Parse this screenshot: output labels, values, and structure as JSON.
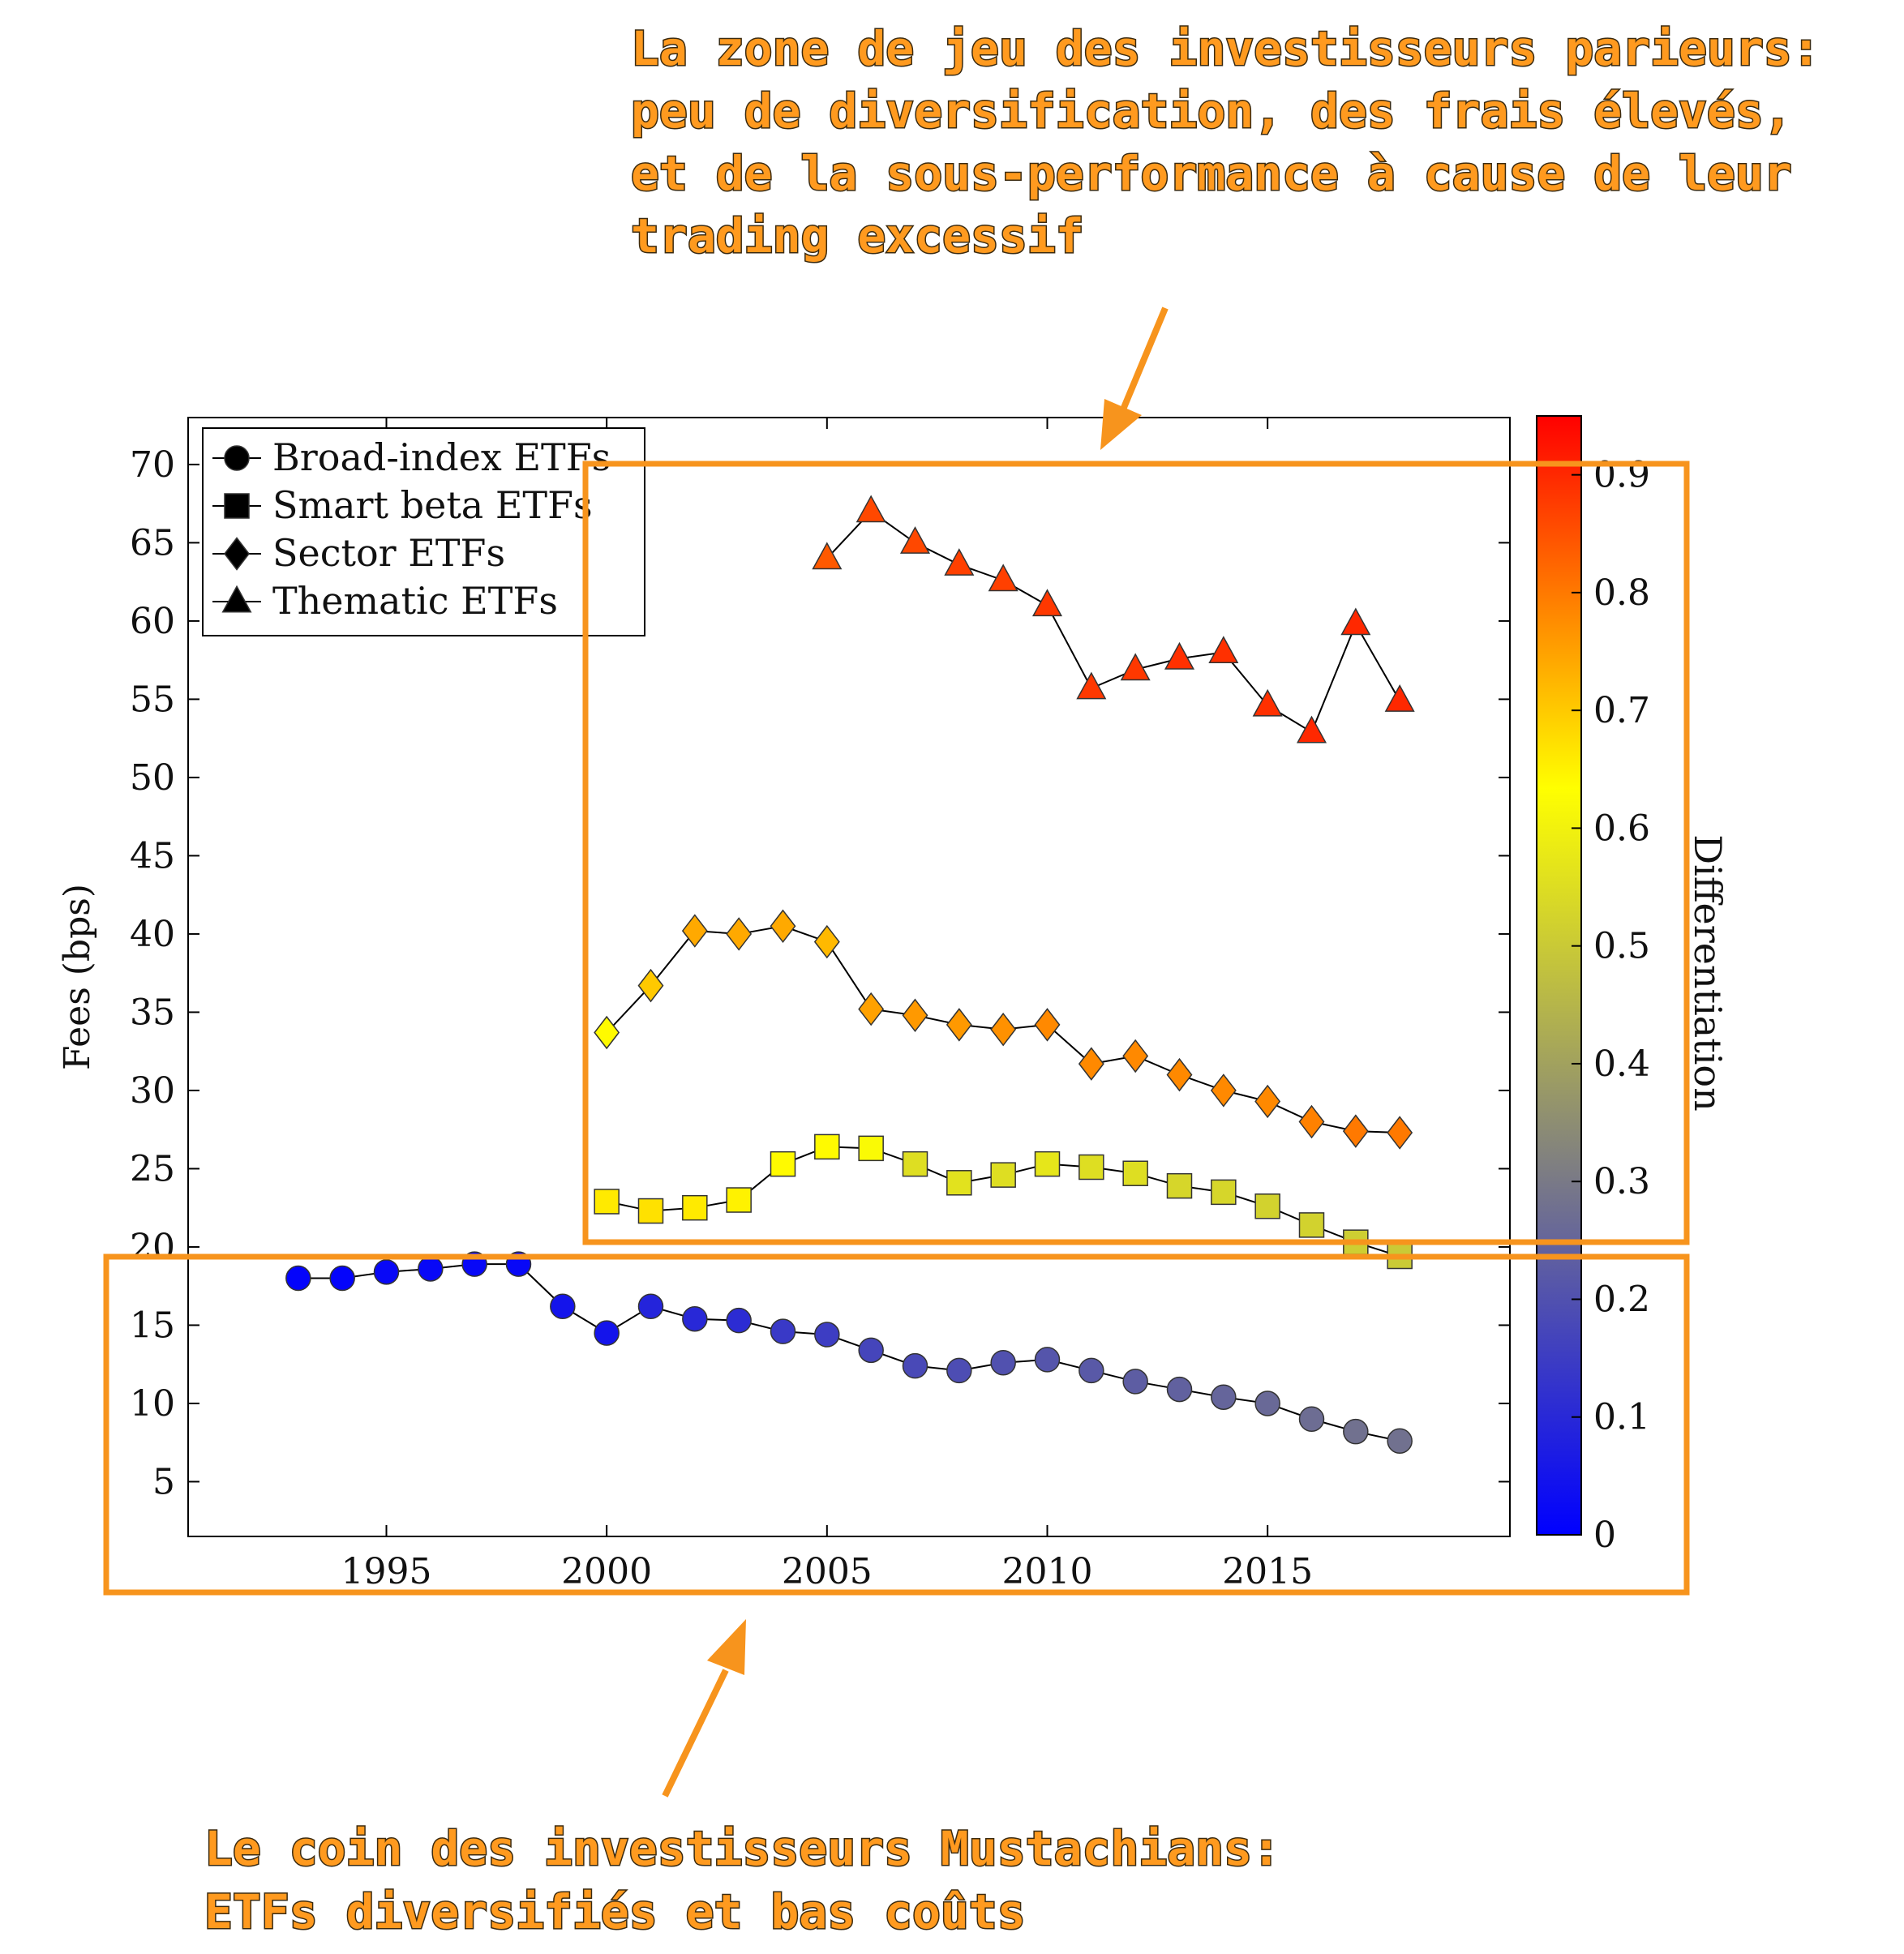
{
  "colors": {
    "annotation": "#f7941d",
    "series_line": "#000000",
    "colormap": [
      "#0000ff",
      "#808080",
      "#ffff00",
      "#ff0000"
    ]
  },
  "annotations": {
    "top_lines": [
      "La zone de jeu des investisseurs parieurs:",
      "peu de diversification, des frais élevés,",
      "et de la sous-performance à cause de leur",
      "trading excessif"
    ],
    "bottom_lines": [
      "Le coin des investisseurs Mustachians:",
      "ETFs diversifiés et bas coûts"
    ]
  },
  "chart_data": {
    "type": "line",
    "title": "",
    "xlabel": "",
    "ylabel": "Fees (bps)",
    "xlim": [
      1990.5,
      2020.5
    ],
    "ylim": [
      1.5,
      73
    ],
    "x_ticks": [
      1995,
      2000,
      2005,
      2010,
      2015
    ],
    "y_ticks": [
      5,
      10,
      15,
      20,
      25,
      30,
      35,
      40,
      45,
      50,
      55,
      60,
      65,
      70
    ],
    "legend_position": "top-left",
    "colorbar": {
      "label": "Differentiation",
      "range": [
        0,
        0.95
      ],
      "ticks": [
        0,
        0.1,
        0.2,
        0.3,
        0.4,
        0.5,
        0.6,
        0.7,
        0.8,
        0.9
      ],
      "tick_labels": [
        "0",
        "0.1",
        "0.2",
        "0.3",
        "0.4",
        "0.5",
        "0.6",
        "0.7",
        "0.8",
        "0.9"
      ]
    },
    "series": [
      {
        "name": "Broad-index ETFs",
        "marker": "circle",
        "x": [
          1993,
          1994,
          1995,
          1996,
          1997,
          1998,
          1999,
          2000,
          2001,
          2002,
          2003,
          2004,
          2005,
          2006,
          2007,
          2008,
          2009,
          2010,
          2011,
          2012,
          2013,
          2014,
          2015,
          2016,
          2017,
          2018
        ],
        "y": [
          18.0,
          18.0,
          18.4,
          18.6,
          18.9,
          18.9,
          16.2,
          14.5,
          16.2,
          15.4,
          15.3,
          14.6,
          14.4,
          13.4,
          12.4,
          12.1,
          12.6,
          12.8,
          12.1,
          11.4,
          10.9,
          10.4,
          10.0,
          9.0,
          8.2,
          7.6
        ],
        "c": [
          0.01,
          0.01,
          0.02,
          0.02,
          0.02,
          0.02,
          0.05,
          0.05,
          0.09,
          0.1,
          0.11,
          0.14,
          0.15,
          0.17,
          0.18,
          0.19,
          0.2,
          0.21,
          0.22,
          0.23,
          0.24,
          0.25,
          0.26,
          0.27,
          0.28,
          0.28
        ]
      },
      {
        "name": "Smart beta ETFs",
        "marker": "square",
        "x": [
          2000,
          2001,
          2002,
          2003,
          2004,
          2005,
          2006,
          2007,
          2008,
          2009,
          2010,
          2011,
          2012,
          2013,
          2014,
          2015,
          2016,
          2017,
          2018
        ],
        "y": [
          22.9,
          22.3,
          22.5,
          23.0,
          25.3,
          26.4,
          26.3,
          25.3,
          24.1,
          24.6,
          25.3,
          25.1,
          24.7,
          23.9,
          23.5,
          22.6,
          21.4,
          20.3,
          19.4
        ],
        "c": [
          0.66,
          0.67,
          0.66,
          0.65,
          0.64,
          0.64,
          0.62,
          0.55,
          0.56,
          0.55,
          0.57,
          0.55,
          0.55,
          0.53,
          0.53,
          0.52,
          0.52,
          0.51,
          0.5
        ]
      },
      {
        "name": "Sector ETFs",
        "marker": "diamond",
        "x": [
          2000,
          2001,
          2002,
          2003,
          2004,
          2005,
          2006,
          2007,
          2008,
          2009,
          2010,
          2011,
          2012,
          2013,
          2014,
          2015,
          2016,
          2017,
          2018
        ],
        "y": [
          33.7,
          36.7,
          40.2,
          40.0,
          40.5,
          39.5,
          35.2,
          34.8,
          34.2,
          33.9,
          34.2,
          31.7,
          32.2,
          31.0,
          30.0,
          29.3,
          28.0,
          27.4,
          27.3
        ],
        "c": [
          0.64,
          0.7,
          0.74,
          0.74,
          0.74,
          0.72,
          0.75,
          0.76,
          0.76,
          0.77,
          0.78,
          0.78,
          0.78,
          0.78,
          0.78,
          0.78,
          0.79,
          0.8,
          0.8
        ]
      },
      {
        "name": "Thematic ETFs",
        "marker": "triangle",
        "x": [
          2005,
          2006,
          2007,
          2008,
          2009,
          2010,
          2011,
          2012,
          2013,
          2014,
          2015,
          2016,
          2017,
          2018
        ],
        "y": [
          64.0,
          67.0,
          65.0,
          63.6,
          62.6,
          61.0,
          55.7,
          56.9,
          57.6,
          58.0,
          54.6,
          52.9,
          59.8,
          54.9
        ],
        "c": [
          0.84,
          0.86,
          0.86,
          0.87,
          0.87,
          0.88,
          0.88,
          0.88,
          0.89,
          0.89,
          0.89,
          0.9,
          0.9,
          0.9
        ]
      }
    ]
  }
}
